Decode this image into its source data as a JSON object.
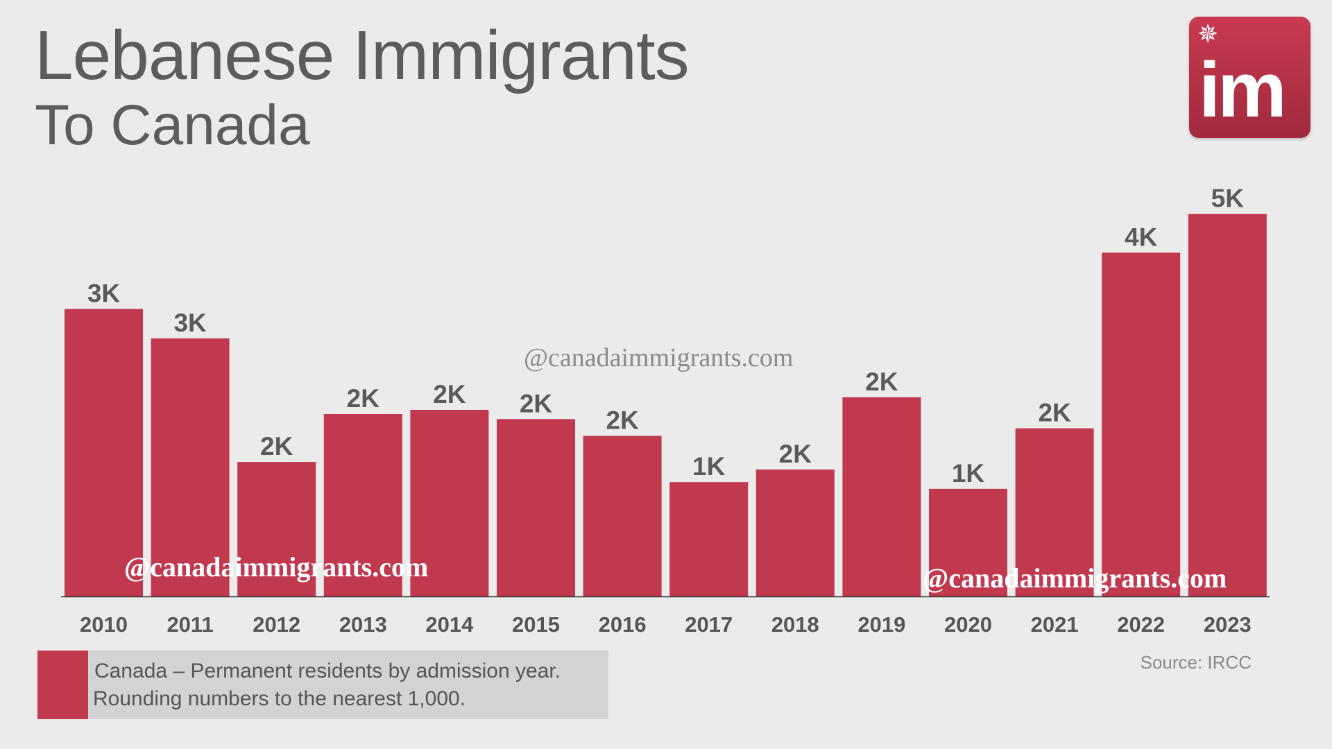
{
  "header": {
    "title": "Lebanese Immigrants",
    "subtitle": "To Canada"
  },
  "logo": {
    "text": "im",
    "icon": "maple-leaf-icon"
  },
  "watermarks": [
    "@canadaimmigrants.com",
    "@canadaimmigrants.com",
    "@canadaimmigrants.com"
  ],
  "legend": {
    "line1": "Canada – Permanent residents by admission year.",
    "line2": "Rounding numbers to the nearest 1,000."
  },
  "source": "Source: IRCC",
  "colors": {
    "bar": "#c0394f",
    "background": "#ebebeb",
    "text": "#595959"
  },
  "chart_data": {
    "type": "bar",
    "title": "Lebanese Immigrants To Canada",
    "categories": [
      "2010",
      "2011",
      "2012",
      "2013",
      "2014",
      "2015",
      "2016",
      "2017",
      "2018",
      "2019",
      "2020",
      "2021",
      "2022",
      "2023"
    ],
    "values": [
      3420,
      3070,
      1600,
      2170,
      2220,
      2110,
      1910,
      1360,
      1510,
      2370,
      1280,
      2000,
      4090,
      4550
    ],
    "data_labels": [
      "3K",
      "3K",
      "2K",
      "2K",
      "2K",
      "2K",
      "2K",
      "1K",
      "2K",
      "2K",
      "1K",
      "2K",
      "4K",
      "5K"
    ],
    "ylim": [
      0,
      5000
    ],
    "grid": false,
    "legend_position": "bottom-left"
  }
}
